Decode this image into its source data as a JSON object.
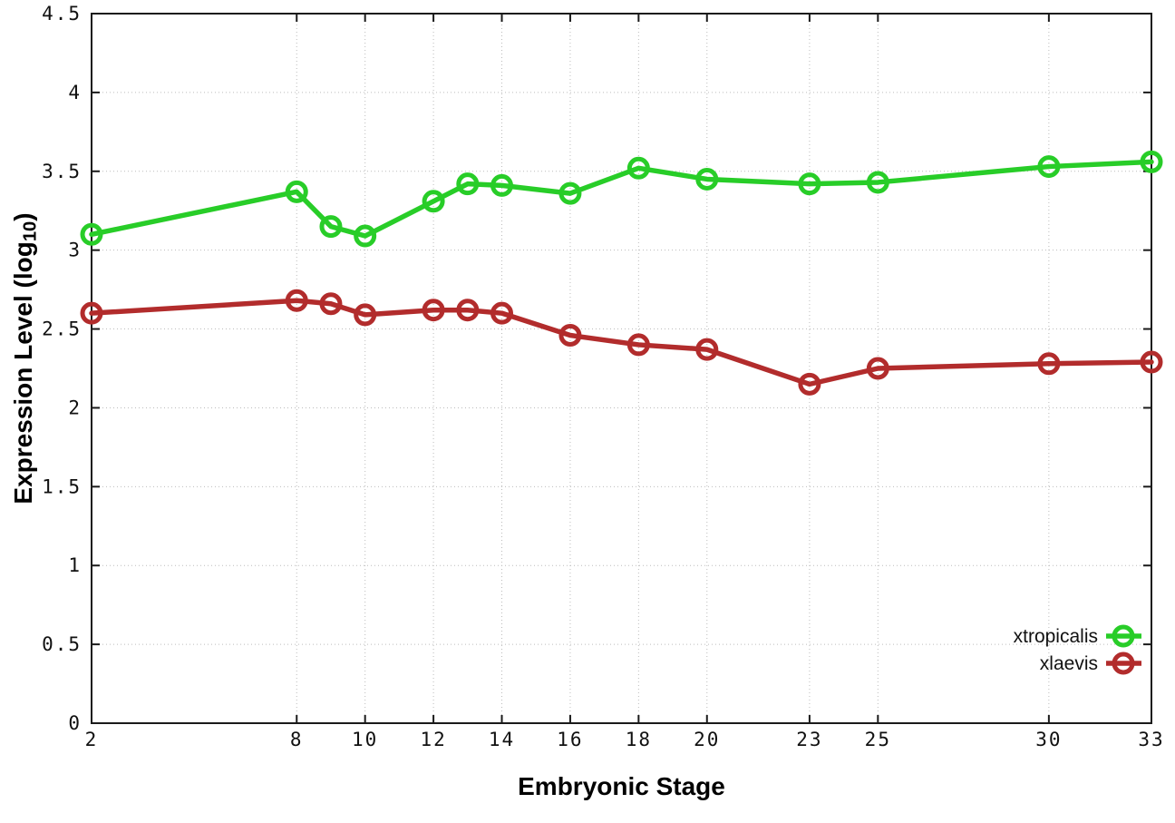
{
  "chart_data": {
    "type": "line",
    "title": "",
    "xlabel": "Embryonic Stage",
    "ylabel": {
      "prefix": "Expression Level (log",
      "sub": "10",
      "suffix": ")"
    },
    "xlim": [
      2,
      33
    ],
    "ylim": [
      0,
      4.5
    ],
    "x_ticks": [
      2,
      8,
      10,
      12,
      14,
      16,
      18,
      20,
      23,
      25,
      30,
      33
    ],
    "y_ticks": [
      0,
      0.5,
      1,
      1.5,
      2,
      2.5,
      3,
      3.5,
      4,
      4.5
    ],
    "grid": true,
    "legend_position": "bottom-right",
    "x": [
      2,
      8,
      9,
      10,
      12,
      13,
      14,
      16,
      18,
      20,
      23,
      25,
      30,
      33
    ],
    "series": [
      {
        "name": "xtropicalis",
        "color": "#28cd28",
        "marker": "open-circle",
        "values": [
          3.1,
          3.37,
          3.15,
          3.09,
          3.31,
          3.42,
          3.41,
          3.36,
          3.52,
          3.45,
          3.42,
          3.43,
          3.53,
          3.56
        ]
      },
      {
        "name": "xlaevis",
        "color": "#b22c2c",
        "marker": "open-circle",
        "values": [
          2.6,
          2.68,
          2.66,
          2.59,
          2.62,
          2.62,
          2.6,
          2.46,
          2.4,
          2.37,
          2.15,
          2.25,
          2.28,
          2.29
        ]
      }
    ],
    "colors": {
      "background": "#ffffff",
      "border": "#1a1a1a",
      "grid": "#bcbcbc",
      "text": "#111111"
    }
  }
}
